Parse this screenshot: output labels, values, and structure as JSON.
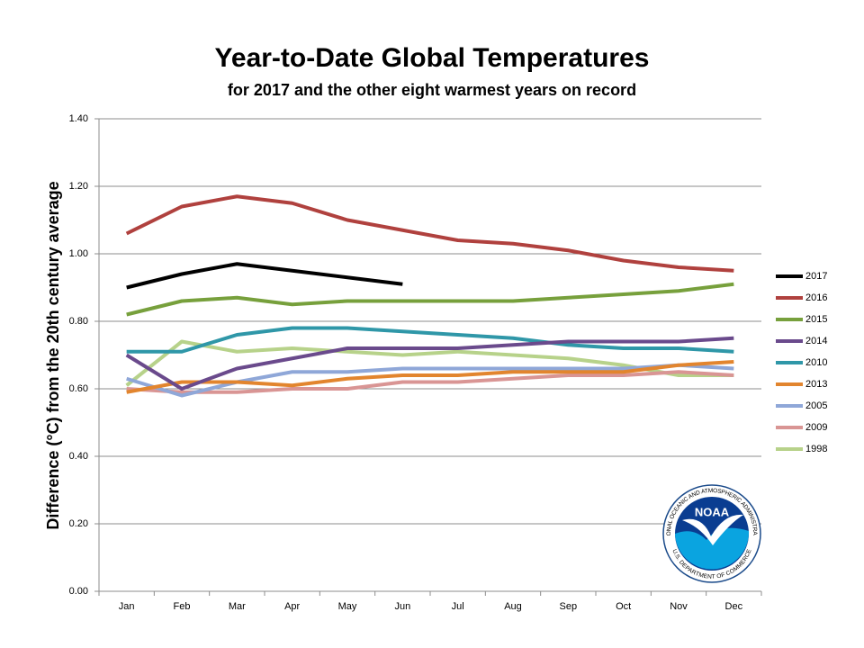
{
  "chart_data": {
    "type": "line",
    "title": "Year-to-Date Global Temperatures",
    "subtitle": "for 2017 and the other eight warmest years on record",
    "y_label": "Difference (°C) from the 20th century average",
    "categories": [
      "Jan",
      "Feb",
      "Mar",
      "Apr",
      "May",
      "Jun",
      "Jul",
      "Aug",
      "Sep",
      "Oct",
      "Nov",
      "Dec"
    ],
    "ylim": [
      0,
      1.4
    ],
    "yticks": [
      {
        "value": 0,
        "label": "0.00"
      },
      {
        "value": 0.2,
        "label": "0.20"
      },
      {
        "value": 0.4,
        "label": "0.40"
      },
      {
        "value": 0.6,
        "label": "0.60"
      },
      {
        "value": 0.8,
        "label": "0.80"
      },
      {
        "value": 1,
        "label": "1.00"
      },
      {
        "value": 1.2,
        "label": "1.20"
      },
      {
        "value": 1.4,
        "label": "1.40"
      }
    ],
    "grid": true,
    "legend": "right",
    "series": [
      {
        "name": "2017",
        "color": "#000000",
        "values": [
          0.9,
          0.94,
          0.97,
          0.95,
          0.93,
          0.91,
          null,
          null,
          null,
          null,
          null,
          null
        ]
      },
      {
        "name": "2016",
        "color": "#b0413e",
        "values": [
          1.06,
          1.14,
          1.17,
          1.15,
          1.1,
          1.07,
          1.04,
          1.03,
          1.01,
          0.98,
          0.96,
          0.95
        ]
      },
      {
        "name": "2015",
        "color": "#77a03c",
        "values": [
          0.82,
          0.86,
          0.87,
          0.85,
          0.86,
          0.86,
          0.86,
          0.86,
          0.87,
          0.88,
          0.89,
          0.91
        ]
      },
      {
        "name": "2014",
        "color": "#6a4a8c",
        "values": [
          0.7,
          0.6,
          0.66,
          0.69,
          0.72,
          0.72,
          0.72,
          0.73,
          0.74,
          0.74,
          0.74,
          0.75
        ]
      },
      {
        "name": "2010",
        "color": "#2f97a8",
        "values": [
          0.71,
          0.71,
          0.76,
          0.78,
          0.78,
          0.77,
          0.76,
          0.75,
          0.73,
          0.72,
          0.72,
          0.71
        ]
      },
      {
        "name": "2013",
        "color": "#e2852e",
        "values": [
          0.59,
          0.62,
          0.62,
          0.61,
          0.63,
          0.64,
          0.64,
          0.65,
          0.65,
          0.65,
          0.67,
          0.68
        ]
      },
      {
        "name": "2005",
        "color": "#8fa7d8",
        "values": [
          0.63,
          0.58,
          0.62,
          0.65,
          0.65,
          0.66,
          0.66,
          0.66,
          0.66,
          0.66,
          0.67,
          0.66
        ]
      },
      {
        "name": "2009",
        "color": "#d99594",
        "values": [
          0.6,
          0.59,
          0.59,
          0.6,
          0.6,
          0.62,
          0.62,
          0.63,
          0.64,
          0.64,
          0.65,
          0.64
        ]
      },
      {
        "name": "1998",
        "color": "#b7d28a",
        "values": [
          0.61,
          0.74,
          0.71,
          0.72,
          0.71,
          0.7,
          0.71,
          0.7,
          0.69,
          0.67,
          0.64,
          0.64
        ]
      }
    ]
  },
  "logo": {
    "text": "NOAA",
    "ring_top": "NATIONAL OCEANIC AND ATMOSPHERIC ADMINISTRATION",
    "ring_bottom": "U.S. DEPARTMENT OF COMMERCE"
  }
}
